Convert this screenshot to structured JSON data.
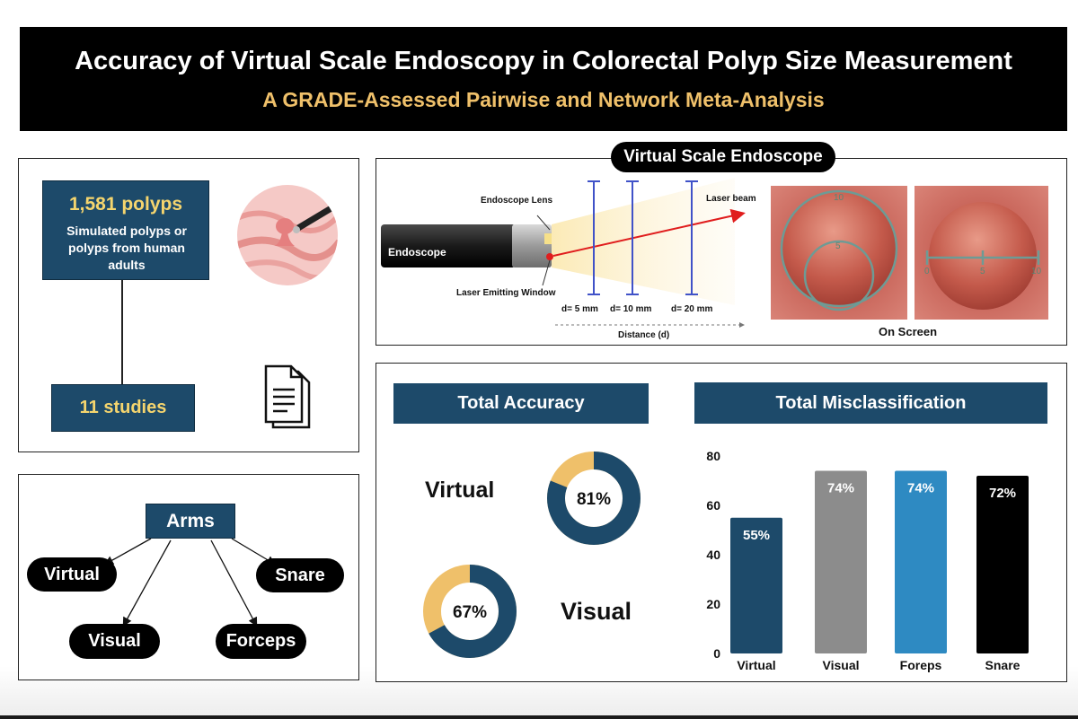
{
  "header": {
    "title": "Accuracy of  Virtual Scale Endoscopy in Colorectal Polyp Size Measurement",
    "subtitle": "A GRADE-Assessed Pairwise and Network Meta-Analysis"
  },
  "studies_panel": {
    "polyps_count": "1,581 polyps",
    "polyps_desc": "Simulated polyps or polyps from human adults",
    "studies_count": "11 studies"
  },
  "arms_panel": {
    "root": "Arms",
    "arms": [
      "Virtual",
      "Snare",
      "Visual",
      "Forceps"
    ]
  },
  "endoscope_panel": {
    "title": "Virtual Scale Endoscope",
    "endoscope_label": "Endoscope",
    "lens_label": "Endoscope Lens",
    "laser_window_label": "Laser Emitting Window",
    "laser_beam_label": "Laser beam",
    "distances": [
      "d= 5 mm",
      "d= 10 mm",
      "d= 20 mm"
    ],
    "distance_axis": "Distance (d)",
    "on_screen_label": "On Screen",
    "scale_marks_circle": [
      "10",
      "5"
    ],
    "scale_marks_ruler": [
      "0",
      "5",
      "10"
    ]
  },
  "accuracy_panel": {
    "title": "Total Accuracy",
    "items": [
      {
        "label": "Virtual",
        "value": 81,
        "value_label": "81%"
      },
      {
        "label": "Visual",
        "value": 67,
        "value_label": "67%"
      }
    ]
  },
  "colors": {
    "navy": "#1d4a6a",
    "gold": "#efc06a",
    "donut_fill": "#1d4a6a",
    "donut_rest": "#efc06a"
  },
  "chart_data": {
    "type": "bar",
    "title": "Total Misclassification",
    "categories": [
      "Virtual",
      "Visual",
      "Foreps",
      "Snare"
    ],
    "values": [
      55,
      74,
      74,
      72
    ],
    "value_labels": [
      "55%",
      "74%",
      "74%",
      "72%"
    ],
    "bar_colors": [
      "#1d4a6a",
      "#8c8c8c",
      "#2e8ac2",
      "#000000"
    ],
    "yticks": [
      0,
      20,
      40,
      60,
      80
    ],
    "ylim": [
      0,
      80
    ],
    "xlabel": "",
    "ylabel": ""
  }
}
